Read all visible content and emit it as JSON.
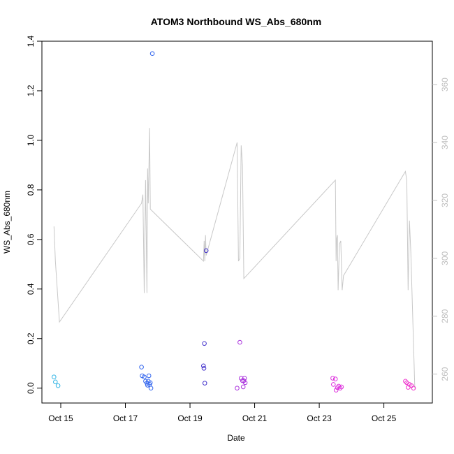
{
  "chart_data": {
    "type": "scatter",
    "title": "ATOM3 Northbound WS_Abs_680nm",
    "xlabel": "Date",
    "ylabel": "WS_Abs_680nm",
    "xlim": [
      "2023-10-14T10:00",
      "2023-10-26T12:00"
    ],
    "ylim": [
      -0.06,
      1.4
    ],
    "y2lim": [
      250,
      375
    ],
    "x_ticks": [
      {
        "label": "Oct 15",
        "date": "2023-10-15T00:00"
      },
      {
        "label": "Oct 17",
        "date": "2023-10-17T00:00"
      },
      {
        "label": "Oct 19",
        "date": "2023-10-19T00:00"
      },
      {
        "label": "Oct 21",
        "date": "2023-10-21T00:00"
      },
      {
        "label": "Oct 23",
        "date": "2023-10-23T00:00"
      },
      {
        "label": "Oct 25",
        "date": "2023-10-25T00:00"
      }
    ],
    "y_ticks": [
      "0.0",
      "0.2",
      "0.4",
      "0.6",
      "0.8",
      "1.0",
      "1.2",
      "1.4"
    ],
    "y2_ticks": [
      "260",
      "280",
      "300",
      "320",
      "340",
      "360"
    ],
    "grid": false,
    "colors": {
      "frame": "#000000",
      "secondary_line": "#c8c8c8",
      "secondary_axis": "#c0c0c0"
    },
    "points": [
      {
        "x": "2023-10-14T19:00",
        "y": 0.045,
        "color": "#33b5e5"
      },
      {
        "x": "2023-10-14T20:00",
        "y": 0.025,
        "color": "#33b5e5"
      },
      {
        "x": "2023-10-14T22:00",
        "y": 0.01,
        "color": "#33b5e5"
      },
      {
        "x": "2023-10-17T12:00",
        "y": 0.085,
        "color": "#3366ee"
      },
      {
        "x": "2023-10-17T12:30",
        "y": 0.05,
        "color": "#3366ee"
      },
      {
        "x": "2023-10-17T14:00",
        "y": 0.045,
        "color": "#3366ee"
      },
      {
        "x": "2023-10-17T15:00",
        "y": 0.028,
        "color": "#3366ee"
      },
      {
        "x": "2023-10-17T16:00",
        "y": 0.02,
        "color": "#3366ee"
      },
      {
        "x": "2023-10-17T16:30",
        "y": 0.012,
        "color": "#3366ee"
      },
      {
        "x": "2023-10-17T17:00",
        "y": 0.028,
        "color": "#3366ee"
      },
      {
        "x": "2023-10-17T17:30",
        "y": 0.05,
        "color": "#3366ee"
      },
      {
        "x": "2023-10-17T18:00",
        "y": 0.015,
        "color": "#3366ee"
      },
      {
        "x": "2023-10-17T18:30",
        "y": 0.022,
        "color": "#3366ee"
      },
      {
        "x": "2023-10-17T19:00",
        "y": 0.0,
        "color": "#3366ee"
      },
      {
        "x": "2023-10-17T20:00",
        "y": 1.35,
        "color": "#3366ee"
      },
      {
        "x": "2023-10-19T10:00",
        "y": 0.09,
        "color": "#4433cc"
      },
      {
        "x": "2023-10-19T10:20",
        "y": 0.08,
        "color": "#4433cc"
      },
      {
        "x": "2023-10-19T10:40",
        "y": 0.18,
        "color": "#4433cc"
      },
      {
        "x": "2023-10-19T11:00",
        "y": 0.02,
        "color": "#4433cc"
      },
      {
        "x": "2023-10-19T12:00",
        "y": 0.555,
        "color": "#4433cc"
      },
      {
        "x": "2023-10-20T11:00",
        "y": 0.0,
        "color": "#aa33dd"
      },
      {
        "x": "2023-10-20T13:00",
        "y": 0.185,
        "color": "#aa33dd"
      },
      {
        "x": "2023-10-20T14:00",
        "y": 0.04,
        "color": "#aa33dd"
      },
      {
        "x": "2023-10-20T15:00",
        "y": 0.03,
        "color": "#aa33dd"
      },
      {
        "x": "2023-10-20T15:30",
        "y": 0.005,
        "color": "#aa33dd"
      },
      {
        "x": "2023-10-20T16:00",
        "y": 0.03,
        "color": "#aa33dd"
      },
      {
        "x": "2023-10-20T16:30",
        "y": 0.04,
        "color": "#aa33dd"
      },
      {
        "x": "2023-10-20T17:00",
        "y": 0.022,
        "color": "#aa33dd"
      },
      {
        "x": "2023-10-23T10:00",
        "y": 0.04,
        "color": "#dd33dd"
      },
      {
        "x": "2023-10-23T10:30",
        "y": 0.015,
        "color": "#dd33dd"
      },
      {
        "x": "2023-10-23T12:00",
        "y": 0.037,
        "color": "#dd33dd"
      },
      {
        "x": "2023-10-23T12:30",
        "y": -0.008,
        "color": "#dd33dd"
      },
      {
        "x": "2023-10-23T13:30",
        "y": 0.002,
        "color": "#dd33dd"
      },
      {
        "x": "2023-10-23T14:30",
        "y": 0.008,
        "color": "#dd33dd"
      },
      {
        "x": "2023-10-23T15:30",
        "y": 0.0,
        "color": "#dd33dd"
      },
      {
        "x": "2023-10-23T16:30",
        "y": 0.005,
        "color": "#dd33dd"
      },
      {
        "x": "2023-10-25T16:00",
        "y": 0.028,
        "color": "#ee33cc"
      },
      {
        "x": "2023-10-25T17:00",
        "y": 0.022,
        "color": "#ee33cc"
      },
      {
        "x": "2023-10-25T18:00",
        "y": 0.003,
        "color": "#ee33cc"
      },
      {
        "x": "2023-10-25T19:00",
        "y": 0.015,
        "color": "#ee33cc"
      },
      {
        "x": "2023-10-25T20:30",
        "y": 0.01,
        "color": "#ee33cc"
      },
      {
        "x": "2023-10-25T22:00",
        "y": 0.0,
        "color": "#ee33cc"
      }
    ],
    "secondary_line": [
      {
        "x": "2023-10-14T19:00",
        "y": 311
      },
      {
        "x": "2023-10-14T20:00",
        "y": 299
      },
      {
        "x": "2023-10-14T23:00",
        "y": 278
      },
      {
        "x": "2023-10-17T12:00",
        "y": 319
      },
      {
        "x": "2023-10-17T13:00",
        "y": 322
      },
      {
        "x": "2023-10-17T14:00",
        "y": 288
      },
      {
        "x": "2023-10-17T15:00",
        "y": 327
      },
      {
        "x": "2023-10-17T16:00",
        "y": 288
      },
      {
        "x": "2023-10-17T16:30",
        "y": 331
      },
      {
        "x": "2023-10-17T17:00",
        "y": 319
      },
      {
        "x": "2023-10-17T18:00",
        "y": 345
      },
      {
        "x": "2023-10-17T18:30",
        "y": 317
      },
      {
        "x": "2023-10-19T10:00",
        "y": 299
      },
      {
        "x": "2023-10-19T10:30",
        "y": 306
      },
      {
        "x": "2023-10-19T11:00",
        "y": 299
      },
      {
        "x": "2023-10-19T11:30",
        "y": 308
      },
      {
        "x": "2023-10-19T12:00",
        "y": 301
      },
      {
        "x": "2023-10-20T11:00",
        "y": 340
      },
      {
        "x": "2023-10-20T12:00",
        "y": 299
      },
      {
        "x": "2023-10-20T13:00",
        "y": 300
      },
      {
        "x": "2023-10-20T14:00",
        "y": 339
      },
      {
        "x": "2023-10-20T15:00",
        "y": 332
      },
      {
        "x": "2023-10-20T16:00",
        "y": 293
      },
      {
        "x": "2023-10-23T12:00",
        "y": 327
      },
      {
        "x": "2023-10-23T12:30",
        "y": 299
      },
      {
        "x": "2023-10-23T13:00",
        "y": 307
      },
      {
        "x": "2023-10-23T13:30",
        "y": 308
      },
      {
        "x": "2023-10-23T14:00",
        "y": 289
      },
      {
        "x": "2023-10-23T15:00",
        "y": 305
      },
      {
        "x": "2023-10-23T16:00",
        "y": 306
      },
      {
        "x": "2023-10-23T17:00",
        "y": 289
      },
      {
        "x": "2023-10-23T18:00",
        "y": 294
      },
      {
        "x": "2023-10-25T16:00",
        "y": 330
      },
      {
        "x": "2023-10-25T17:00",
        "y": 327
      },
      {
        "x": "2023-10-25T18:00",
        "y": 289
      },
      {
        "x": "2023-10-25T19:00",
        "y": 313
      },
      {
        "x": "2023-10-25T20:00",
        "y": 302
      },
      {
        "x": "2023-10-25T23:00",
        "y": 255
      }
    ]
  }
}
